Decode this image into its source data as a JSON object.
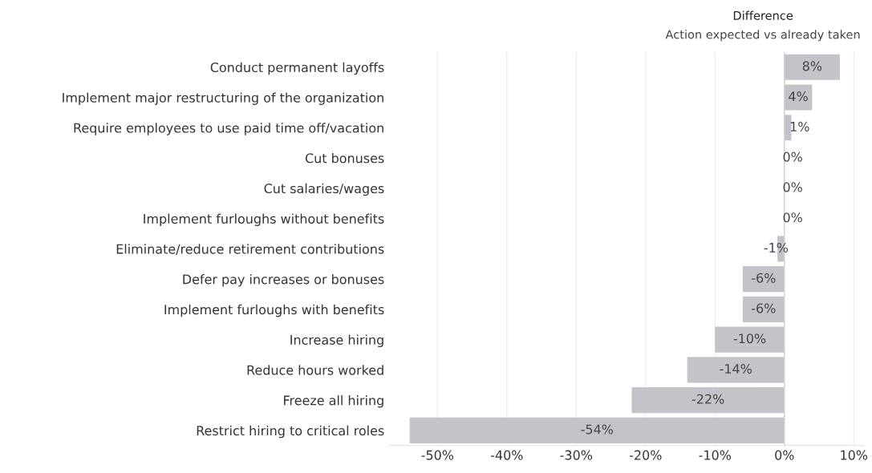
{
  "chart_data": {
    "type": "bar",
    "orientation": "horizontal",
    "title": "Difference",
    "subtitle": "Action expected vs already taken",
    "categories": [
      "Conduct permanent layoffs",
      "Implement major restructuring of the organization",
      "Require employees to use paid time off/vacation",
      "Cut bonuses",
      "Cut salaries/wages",
      "Implement furloughs without benefits",
      "Eliminate/reduce retirement contributions",
      "Defer pay increases or bonuses",
      "Implement furloughs with benefits",
      "Increase hiring",
      "Reduce hours worked",
      "Freeze all hiring",
      "Restrict hiring to critical roles"
    ],
    "values": [
      8,
      4,
      1,
      0,
      0,
      0,
      -1,
      -6,
      -6,
      -10,
      -14,
      -22,
      -54
    ],
    "value_labels": [
      "8%",
      "4%",
      "1%",
      "0%",
      "0%",
      "0%",
      "-1%",
      "-6%",
      "-6%",
      "-10%",
      "-14%",
      "-22%",
      "-54%"
    ],
    "color": "#c4c3ca",
    "xlim": [
      -57,
      11.5
    ],
    "xticks": [
      {
        "value": -50,
        "label": "-50%"
      },
      {
        "value": -40,
        "label": "-40%"
      },
      {
        "value": -30,
        "label": "-30%"
      },
      {
        "value": -20,
        "label": "-20%"
      },
      {
        "value": -10,
        "label": "-10%"
      },
      {
        "value": 0,
        "label": "0%"
      },
      {
        "value": 10,
        "label": "10%"
      }
    ],
    "grid": "x",
    "legend": false
  }
}
